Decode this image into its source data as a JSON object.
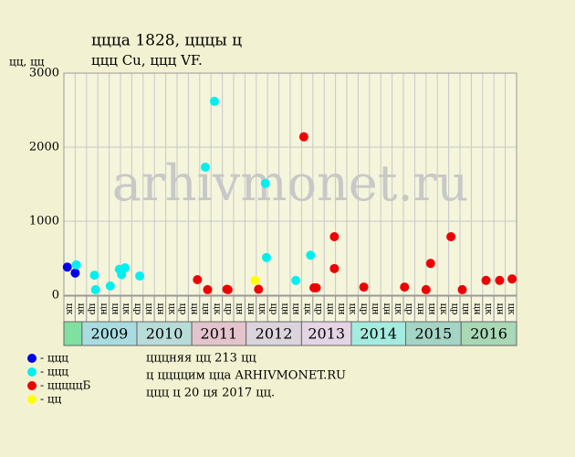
{
  "chart_data": {
    "type": "scatter",
    "title": "ццца 1828, цццы ц",
    "subtitle": "ццц Cu, ццц VF.",
    "y_label": "цц, цц",
    "watermark": "arhivmonet.ru",
    "ylim": [
      0,
      3000
    ],
    "yticks": [
      0,
      1000,
      2000,
      3000
    ],
    "xlim": [
      0,
      40
    ],
    "grid": true,
    "categories": [
      "цк",
      "цк",
      "цр",
      "цн",
      "цн",
      "цк",
      "цр",
      "цн",
      "цн",
      "цк",
      "цр",
      "цн",
      "цн",
      "цк",
      "цр",
      "цн",
      "цн",
      "цк",
      "цр",
      "цн",
      "цн",
      "цк",
      "цр",
      "цн",
      "цн",
      "цк",
      "цр",
      "цн",
      "цн",
      "цк",
      "цр",
      "цн",
      "цн",
      "цк",
      "цр",
      "цн",
      "цн",
      "цк",
      "цн",
      "цк"
    ],
    "years": [
      {
        "label": null,
        "start": 0,
        "end": 1.6,
        "color": "#80e0a0"
      },
      {
        "label": "2009",
        "start": 1.6,
        "end": 6.45,
        "color": "#a8dce0"
      },
      {
        "label": "2010",
        "start": 6.45,
        "end": 11.3,
        "color": "#b8dcd8"
      },
      {
        "label": "2011",
        "start": 11.3,
        "end": 16.1,
        "color": "#e4c4cc"
      },
      {
        "label": "2012",
        "start": 16.1,
        "end": 21,
        "color": "#dcd4dc"
      },
      {
        "label": "2013",
        "start": 21,
        "end": 25.4,
        "color": "#e4d4e4"
      },
      {
        "label": "2014",
        "start": 25.4,
        "end": 30.2,
        "color": "#a4ece0"
      },
      {
        "label": "2015",
        "start": 30.2,
        "end": 35.1,
        "color": "#a4d4c4"
      },
      {
        "label": "2016",
        "start": 35.1,
        "end": 40,
        "color": "#a8d8b4"
      }
    ],
    "series": [
      {
        "name": "- ццц",
        "color": "#0000ee",
        "x": [
          0.3,
          1.0
        ],
        "values": [
          380,
          300
        ]
      },
      {
        "name": "- ццц",
        "color": "#00f0f0",
        "x": [
          1.1,
          2.7,
          2.8,
          4.1,
          4.9,
          5.1,
          5.4,
          6.7,
          12.5,
          13.3,
          17.8,
          17.9,
          20.5,
          21.8
        ],
        "values": [
          410,
          270,
          75,
          125,
          350,
          280,
          370,
          260,
          1730,
          2620,
          1510,
          510,
          200,
          540
        ]
      },
      {
        "name": "- цццццБ",
        "color": "#ee0000",
        "x": [
          11.8,
          12.7,
          14.4,
          14.5,
          17.2,
          21.2,
          22.1,
          22.3,
          23.9,
          23.9,
          26.5,
          30.1,
          32.0,
          32.4,
          34.2,
          35.2,
          37.3,
          38.5,
          39.6
        ],
        "values": [
          210,
          75,
          80,
          75,
          80,
          2140,
          100,
          100,
          360,
          790,
          110,
          110,
          75,
          430,
          790,
          75,
          200,
          200,
          220
        ]
      },
      {
        "name": "- цц",
        "color": "#ffff00",
        "x": [
          16.9
        ],
        "values": [
          200
        ]
      }
    ],
    "notes": [
      "цццняя цц 213 цц",
      "ц ццццим цца ARHIVMONET.RU",
      "ццц ц 20 ця 2017 цц."
    ]
  }
}
